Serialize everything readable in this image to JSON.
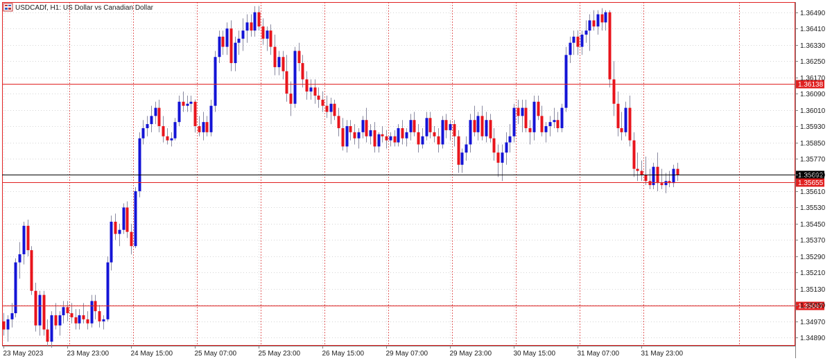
{
  "window": {
    "symbol_title": "USDCADf, H1:  US Dollar vs Canadian Dollar",
    "chart_icon": "chart-window-icon"
  },
  "colors": {
    "bull": "#1414d6",
    "bear": "#e8141c",
    "wick": "#8a8aa0",
    "grid_h": "#d4d4d4",
    "grid_v_dotted": "#d4d4d4",
    "session_line": "#e26060",
    "level_line": "#e02020",
    "bid_line": "#000000",
    "frame": "#e02020"
  },
  "chart_data": {
    "type": "candlestick",
    "title": "USDCADf, H1:  US Dollar vs Canadian Dollar",
    "timeframe": "H1",
    "ylim": [
      1.3485,
      1.3654
    ],
    "y_ticks": [
      "1.36490",
      "1.36410",
      "1.36330",
      "1.36250",
      "1.36170",
      "1.36090",
      "1.36010",
      "1.35930",
      "1.35850",
      "1.35770",
      "1.35690",
      "1.35610",
      "1.35530",
      "1.35450",
      "1.35370",
      "1.35290",
      "1.35210",
      "1.35130",
      "1.35050",
      "1.34970",
      "1.34890"
    ],
    "x_labels": [
      "23 May 2023",
      "23 May 23:00",
      "24 May 15:00",
      "25 May 07:00",
      "25 May 23:00",
      "26 May 15:00",
      "29 May 07:00",
      "29 May 23:00",
      "30 May 15:00",
      "31 May 07:00",
      "31 May 23:00"
    ],
    "x_label_bars": [
      0,
      16,
      32,
      48,
      64,
      80,
      96,
      112,
      128,
      144,
      160
    ],
    "session_separator_bars": [
      17,
      33,
      49,
      65,
      81,
      97,
      113,
      129,
      145,
      161,
      185
    ],
    "price_levels": [
      {
        "value": 1.36138,
        "label": "1.36138",
        "style": "red"
      },
      {
        "value": 1.35692,
        "label": "1.35692",
        "style": "black"
      },
      {
        "value": 1.35655,
        "label": "1.35655",
        "style": "red"
      },
      {
        "value": 1.35047,
        "label": "1.35047",
        "style": "red"
      }
    ],
    "ohlc": [
      [
        1.3497,
        1.3501,
        1.349,
        1.3493
      ],
      [
        1.3493,
        1.35,
        1.3487,
        1.3498
      ],
      [
        1.3498,
        1.3506,
        1.3494,
        1.3501
      ],
      [
        1.3501,
        1.3528,
        1.3499,
        1.3526
      ],
      [
        1.3526,
        1.3536,
        1.3518,
        1.353
      ],
      [
        1.353,
        1.3546,
        1.3525,
        1.3544
      ],
      [
        1.3544,
        1.3547,
        1.3529,
        1.3532
      ],
      [
        1.3532,
        1.3534,
        1.351,
        1.3512
      ],
      [
        1.3512,
        1.3516,
        1.3492,
        1.3495
      ],
      [
        1.3495,
        1.3512,
        1.349,
        1.351
      ],
      [
        1.351,
        1.3512,
        1.349,
        1.3493
      ],
      [
        1.3493,
        1.3498,
        1.3485,
        1.3487
      ],
      [
        1.3487,
        1.3502,
        1.3484,
        1.35
      ],
      [
        1.35,
        1.3506,
        1.3493,
        1.3495
      ],
      [
        1.3495,
        1.3502,
        1.349,
        1.35
      ],
      [
        1.35,
        1.3507,
        1.3496,
        1.3504
      ],
      [
        1.3504,
        1.3507,
        1.3497,
        1.3501
      ],
      [
        1.3501,
        1.3506,
        1.3496,
        1.3499
      ],
      [
        1.3499,
        1.3503,
        1.3493,
        1.3496
      ],
      [
        1.3496,
        1.3503,
        1.3493,
        1.35
      ],
      [
        1.35,
        1.3506,
        1.3496,
        1.3498
      ],
      [
        1.3498,
        1.3502,
        1.3493,
        1.3496
      ],
      [
        1.3496,
        1.351,
        1.3494,
        1.3507
      ],
      [
        1.3507,
        1.351,
        1.3498,
        1.3502
      ],
      [
        1.3502,
        1.3505,
        1.3494,
        1.3497
      ],
      [
        1.3497,
        1.35,
        1.3493,
        1.3498
      ],
      [
        1.3498,
        1.3529,
        1.3497,
        1.3526
      ],
      [
        1.3526,
        1.3549,
        1.3522,
        1.3546
      ],
      [
        1.3546,
        1.355,
        1.3537,
        1.354
      ],
      [
        1.354,
        1.3545,
        1.3534,
        1.3542
      ],
      [
        1.3542,
        1.3555,
        1.354,
        1.3553
      ],
      [
        1.3553,
        1.3556,
        1.3538,
        1.3541
      ],
      [
        1.3541,
        1.3545,
        1.353,
        1.3534
      ],
      [
        1.3534,
        1.3563,
        1.3533,
        1.3561
      ],
      [
        1.3561,
        1.359,
        1.3558,
        1.3587
      ],
      [
        1.3587,
        1.3596,
        1.3584,
        1.3592
      ],
      [
        1.3592,
        1.3598,
        1.3588,
        1.3594
      ],
      [
        1.3594,
        1.3603,
        1.359,
        1.3598
      ],
      [
        1.3598,
        1.3605,
        1.3594,
        1.3602
      ],
      [
        1.3602,
        1.3606,
        1.359,
        1.3593
      ],
      [
        1.3593,
        1.3598,
        1.3585,
        1.3588
      ],
      [
        1.3588,
        1.3592,
        1.3584,
        1.3586
      ],
      [
        1.3586,
        1.359,
        1.3583,
        1.3587
      ],
      [
        1.3587,
        1.3597,
        1.3586,
        1.3595
      ],
      [
        1.3595,
        1.3608,
        1.3593,
        1.3605
      ],
      [
        1.3605,
        1.361,
        1.36,
        1.3603
      ],
      [
        1.3603,
        1.3608,
        1.36,
        1.3604
      ],
      [
        1.3604,
        1.3608,
        1.36,
        1.3605
      ],
      [
        1.3605,
        1.3606,
        1.359,
        1.3593
      ],
      [
        1.3593,
        1.3598,
        1.3588,
        1.359
      ],
      [
        1.359,
        1.36,
        1.3586,
        1.3595
      ],
      [
        1.3595,
        1.3598,
        1.3588,
        1.359
      ],
      [
        1.359,
        1.3606,
        1.3588,
        1.3603
      ],
      [
        1.3603,
        1.363,
        1.36,
        1.3627
      ],
      [
        1.3627,
        1.364,
        1.3624,
        1.3637
      ],
      [
        1.3637,
        1.364,
        1.3628,
        1.3632
      ],
      [
        1.3632,
        1.3644,
        1.3628,
        1.3641
      ],
      [
        1.3641,
        1.3645,
        1.362,
        1.3624
      ],
      [
        1.3624,
        1.3637,
        1.362,
        1.3634
      ],
      [
        1.3634,
        1.364,
        1.3628,
        1.3636
      ],
      [
        1.3636,
        1.3646,
        1.363,
        1.364
      ],
      [
        1.364,
        1.3648,
        1.3634,
        1.3644
      ],
      [
        1.3644,
        1.3648,
        1.3637,
        1.364
      ],
      [
        1.364,
        1.3652,
        1.3637,
        1.3649
      ],
      [
        1.3649,
        1.3652,
        1.364,
        1.3642
      ],
      [
        1.3642,
        1.3646,
        1.3633,
        1.3636
      ],
      [
        1.3636,
        1.3642,
        1.363,
        1.364
      ],
      [
        1.364,
        1.3643,
        1.3628,
        1.3632
      ],
      [
        1.3632,
        1.3638,
        1.3618,
        1.3622
      ],
      [
        1.3622,
        1.363,
        1.3618,
        1.3627
      ],
      [
        1.3627,
        1.363,
        1.3616,
        1.362
      ],
      [
        1.362,
        1.3628,
        1.3605,
        1.3609
      ],
      [
        1.3609,
        1.3615,
        1.3598,
        1.3604
      ],
      [
        1.3604,
        1.3632,
        1.3602,
        1.363
      ],
      [
        1.363,
        1.3634,
        1.362,
        1.3624
      ],
      [
        1.3624,
        1.3628,
        1.3612,
        1.3616
      ],
      [
        1.3616,
        1.362,
        1.3606,
        1.361
      ],
      [
        1.361,
        1.3616,
        1.3606,
        1.3612
      ],
      [
        1.3612,
        1.3616,
        1.3604,
        1.3608
      ],
      [
        1.3608,
        1.3612,
        1.3602,
        1.3606
      ],
      [
        1.3606,
        1.361,
        1.36,
        1.3603
      ],
      [
        1.3603,
        1.3608,
        1.3597,
        1.36
      ],
      [
        1.36,
        1.3607,
        1.3594,
        1.3604
      ],
      [
        1.3604,
        1.3606,
        1.3596,
        1.3598
      ],
      [
        1.3598,
        1.3602,
        1.3588,
        1.3592
      ],
      [
        1.3592,
        1.3597,
        1.3581,
        1.3583
      ],
      [
        1.3583,
        1.3596,
        1.358,
        1.3593
      ],
      [
        1.3593,
        1.3596,
        1.3586,
        1.359
      ],
      [
        1.359,
        1.3594,
        1.3584,
        1.3587
      ],
      [
        1.3587,
        1.3592,
        1.3582,
        1.359
      ],
      [
        1.359,
        1.3598,
        1.3587,
        1.3596
      ],
      [
        1.3596,
        1.3602,
        1.3585,
        1.3588
      ],
      [
        1.3588,
        1.3594,
        1.3584,
        1.3591
      ],
      [
        1.3591,
        1.3595,
        1.358,
        1.3583
      ],
      [
        1.3583,
        1.359,
        1.358,
        1.3589
      ],
      [
        1.3589,
        1.3593,
        1.3585,
        1.3588
      ],
      [
        1.3588,
        1.3591,
        1.3582,
        1.3586
      ],
      [
        1.3586,
        1.359,
        1.3583,
        1.3588
      ],
      [
        1.3588,
        1.3591,
        1.3583,
        1.3585
      ],
      [
        1.3585,
        1.3594,
        1.3583,
        1.3592
      ],
      [
        1.3592,
        1.3596,
        1.3584,
        1.3587
      ],
      [
        1.3587,
        1.3592,
        1.3583,
        1.359
      ],
      [
        1.359,
        1.3599,
        1.3586,
        1.3596
      ],
      [
        1.3596,
        1.36,
        1.3588,
        1.359
      ],
      [
        1.359,
        1.3594,
        1.358,
        1.3584
      ],
      [
        1.3584,
        1.3592,
        1.3582,
        1.3588
      ],
      [
        1.3588,
        1.36,
        1.3586,
        1.3597
      ],
      [
        1.3597,
        1.36,
        1.3587,
        1.359
      ],
      [
        1.359,
        1.3593,
        1.3585,
        1.3588
      ],
      [
        1.3588,
        1.3592,
        1.358,
        1.3584
      ],
      [
        1.3584,
        1.3598,
        1.3582,
        1.3596
      ],
      [
        1.3596,
        1.3599,
        1.3587,
        1.3591
      ],
      [
        1.3591,
        1.3596,
        1.3586,
        1.3594
      ],
      [
        1.3594,
        1.3596,
        1.3583,
        1.3588
      ],
      [
        1.3588,
        1.3591,
        1.357,
        1.3574
      ],
      [
        1.3574,
        1.3582,
        1.357,
        1.358
      ],
      [
        1.358,
        1.3588,
        1.3576,
        1.3584
      ],
      [
        1.3584,
        1.3599,
        1.358,
        1.3596
      ],
      [
        1.3596,
        1.3603,
        1.3588,
        1.359
      ],
      [
        1.359,
        1.36,
        1.3586,
        1.3598
      ],
      [
        1.3598,
        1.3603,
        1.3586,
        1.3588
      ],
      [
        1.3588,
        1.36,
        1.3585,
        1.3596
      ],
      [
        1.3596,
        1.3599,
        1.3585,
        1.3587
      ],
      [
        1.3587,
        1.3592,
        1.3576,
        1.358
      ],
      [
        1.358,
        1.3584,
        1.3568,
        1.3575
      ],
      [
        1.3575,
        1.3584,
        1.3566,
        1.358
      ],
      [
        1.358,
        1.359,
        1.3574,
        1.3585
      ],
      [
        1.3585,
        1.3594,
        1.358,
        1.3588
      ],
      [
        1.3588,
        1.3604,
        1.3585,
        1.3602
      ],
      [
        1.3602,
        1.3606,
        1.3594,
        1.3598
      ],
      [
        1.3598,
        1.3606,
        1.359,
        1.3602
      ],
      [
        1.3602,
        1.3606,
        1.359,
        1.3592
      ],
      [
        1.3592,
        1.3596,
        1.3584,
        1.359
      ],
      [
        1.359,
        1.3608,
        1.3586,
        1.3605
      ],
      [
        1.3605,
        1.3608,
        1.3596,
        1.3598
      ],
      [
        1.3598,
        1.3603,
        1.3588,
        1.359
      ],
      [
        1.359,
        1.3595,
        1.3585,
        1.3593
      ],
      [
        1.3593,
        1.3598,
        1.3588,
        1.3595
      ],
      [
        1.3595,
        1.3602,
        1.3592,
        1.3596
      ],
      [
        1.3596,
        1.36,
        1.359,
        1.3592
      ],
      [
        1.3592,
        1.3604,
        1.359,
        1.3602
      ],
      [
        1.3602,
        1.3632,
        1.36,
        1.3628
      ],
      [
        1.3628,
        1.3637,
        1.3624,
        1.3634
      ],
      [
        1.3634,
        1.364,
        1.3628,
        1.3637
      ],
      [
        1.3637,
        1.364,
        1.3628,
        1.3632
      ],
      [
        1.3632,
        1.364,
        1.3628,
        1.3638
      ],
      [
        1.3638,
        1.3645,
        1.3634,
        1.364
      ],
      [
        1.364,
        1.3648,
        1.363,
        1.3645
      ],
      [
        1.3645,
        1.365,
        1.364,
        1.3642
      ],
      [
        1.3642,
        1.365,
        1.3638,
        1.3648
      ],
      [
        1.3648,
        1.3651,
        1.364,
        1.3644
      ],
      [
        1.3644,
        1.365,
        1.364,
        1.3649
      ],
      [
        1.3649,
        1.365,
        1.3612,
        1.3616
      ],
      [
        1.3616,
        1.3625,
        1.3598,
        1.3604
      ],
      [
        1.3604,
        1.361,
        1.3588,
        1.3592
      ],
      [
        1.3592,
        1.36,
        1.3586,
        1.359
      ],
      [
        1.359,
        1.3605,
        1.3588,
        1.3602
      ],
      [
        1.3602,
        1.3608,
        1.3583,
        1.3586
      ],
      [
        1.3586,
        1.359,
        1.3568,
        1.3572
      ],
      [
        1.3572,
        1.358,
        1.3566,
        1.3571
      ],
      [
        1.3571,
        1.3576,
        1.3566,
        1.3569
      ],
      [
        1.3569,
        1.3578,
        1.3564,
        1.3566
      ],
      [
        1.3566,
        1.3572,
        1.3562,
        1.3564
      ],
      [
        1.3564,
        1.3575,
        1.3562,
        1.3573
      ],
      [
        1.3573,
        1.358,
        1.3561,
        1.3565
      ],
      [
        1.3565,
        1.3572,
        1.3562,
        1.3564
      ],
      [
        1.3564,
        1.357,
        1.356,
        1.3566
      ],
      [
        1.3566,
        1.3571,
        1.3563,
        1.3565
      ],
      [
        1.3565,
        1.3574,
        1.3563,
        1.3572
      ],
      [
        1.3572,
        1.3575,
        1.3566,
        1.3569
      ]
    ]
  }
}
